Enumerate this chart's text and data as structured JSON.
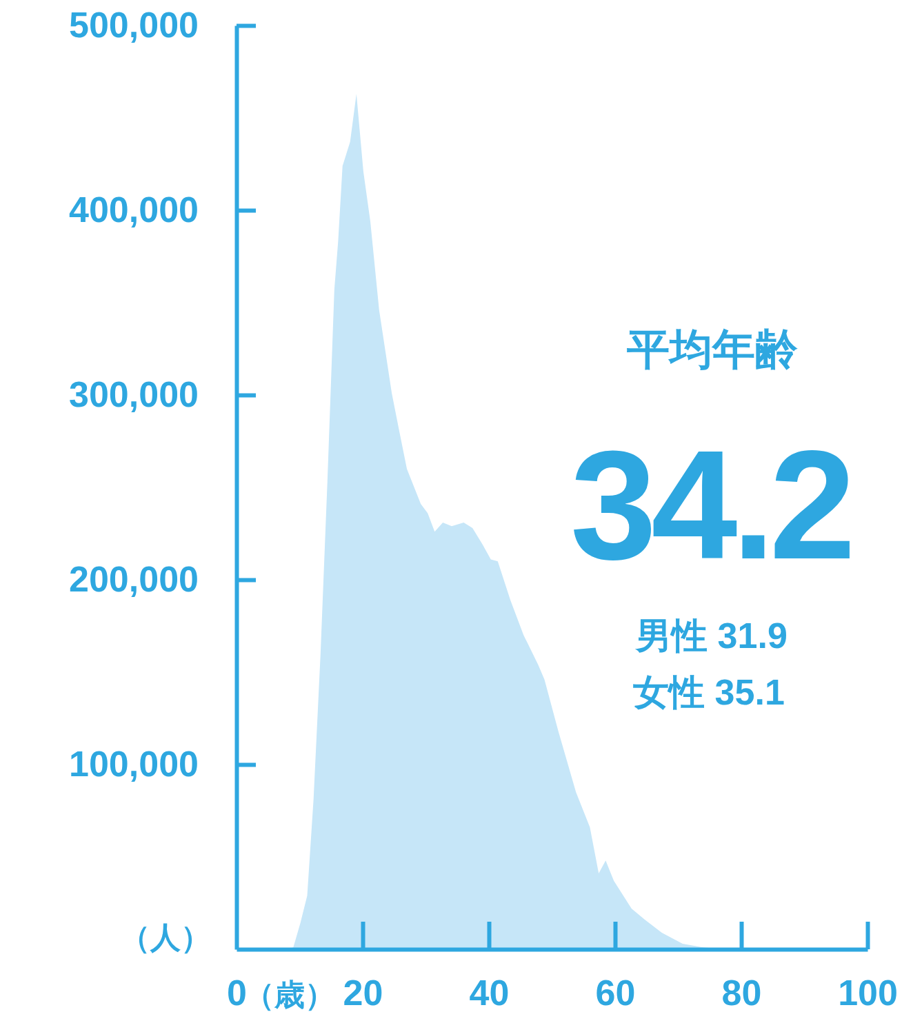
{
  "chart_data": {
    "type": "area",
    "xlabel": "（歳）",
    "ylabel": "（人）",
    "x": [
      0,
      8,
      9.0,
      10.1,
      11.2,
      12.2,
      13.3,
      14.4,
      15.5,
      16.1,
      16.8,
      18.0,
      19.0,
      20.1,
      21.2,
      22.6,
      24.6,
      25.7,
      27.0,
      29.2,
      30.3,
      31.4,
      32.7,
      34.1,
      36.0,
      37.4,
      39.0,
      40.3,
      41.4,
      43.4,
      45.5,
      47.8,
      48.8,
      51.0,
      53.8,
      56.0,
      57.4,
      58.5,
      59.8,
      62.6,
      64.7,
      67.4,
      70.7,
      74.0,
      77.3,
      100
    ],
    "series": [
      {
        "color": "#c6e6f8",
        "values": [
          0,
          0,
          1000,
          14000,
          29000,
          81000,
          159000,
          253000,
          357000,
          383000,
          424000,
          437000,
          463000,
          421000,
          394000,
          346000,
          301000,
          282000,
          260000,
          241000,
          236000,
          226000,
          231000,
          229000,
          231000,
          228000,
          219000,
          211000,
          210000,
          189000,
          170000,
          154000,
          146000,
          118000,
          85000,
          66000,
          41000,
          48000,
          37000,
          22000,
          16000,
          9000,
          3000,
          1000,
          0,
          0
        ]
      }
    ],
    "xlim": [
      0,
      100
    ],
    "xticks": [
      0,
      20,
      40,
      60,
      80,
      100
    ],
    "ylim": [
      0,
      500000
    ],
    "yticks": [
      {
        "value": 100000,
        "label": "100,000"
      },
      {
        "value": 200000,
        "label": "200,000"
      },
      {
        "value": 300000,
        "label": "300,000"
      },
      {
        "value": 400000,
        "label": "400,000"
      },
      {
        "value": 500000,
        "label": "500,000"
      }
    ],
    "annotations": [
      "平均年齢",
      "34.2",
      "男性 31.9",
      "女性 35.1"
    ],
    "grid": false
  }
}
